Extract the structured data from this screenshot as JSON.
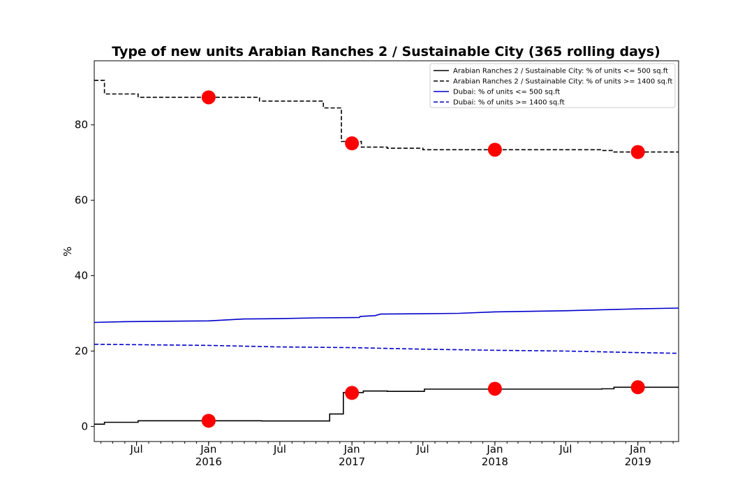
{
  "chart_data": {
    "type": "line",
    "title": "Type of new units Arabian Ranches 2 / Sustainable City (365 rolling days)",
    "xlabel": "",
    "ylabel": "%",
    "xlim": [
      "2015-03-15",
      "2019-04-15"
    ],
    "ylim": [
      -4,
      97
    ],
    "yticks": [
      0,
      20,
      40,
      60,
      80
    ],
    "xticks_major": [
      {
        "date": "2015-07-01",
        "label": "Jul",
        "sub": ""
      },
      {
        "date": "2016-01-01",
        "label": "Jan",
        "sub": "2016"
      },
      {
        "date": "2016-07-01",
        "label": "Jul",
        "sub": ""
      },
      {
        "date": "2017-01-01",
        "label": "Jan",
        "sub": "2017"
      },
      {
        "date": "2017-07-01",
        "label": "Jul",
        "sub": ""
      },
      {
        "date": "2018-01-01",
        "label": "Jan",
        "sub": "2018"
      },
      {
        "date": "2018-07-01",
        "label": "Jul",
        "sub": ""
      },
      {
        "date": "2019-01-01",
        "label": "Jan",
        "sub": "2019"
      }
    ],
    "legend_position": "top-right",
    "grid": false,
    "series": [
      {
        "name": "Arabian Ranches 2 / Sustainable City: % of units <= 500 sq.ft",
        "color": "#000000",
        "style": "solid",
        "step": true,
        "points": [
          [
            "2015-03-15",
            0.6
          ],
          [
            "2015-04-10",
            1.1
          ],
          [
            "2015-07-05",
            1.5
          ],
          [
            "2016-05-15",
            1.45
          ],
          [
            "2016-11-05",
            3.3
          ],
          [
            "2016-12-10",
            9.0
          ],
          [
            "2017-01-30",
            9.4
          ],
          [
            "2017-04-01",
            9.3
          ],
          [
            "2017-07-05",
            9.9
          ],
          [
            "2018-10-01",
            10.0
          ],
          [
            "2018-11-01",
            10.4
          ],
          [
            "2019-04-15",
            10.4
          ]
        ]
      },
      {
        "name": "Arabian Ranches 2 / Sustainable City: % of units >= 1400 sq.ft",
        "color": "#000000",
        "style": "dashed",
        "step": true,
        "points": [
          [
            "2015-03-15",
            91.8
          ],
          [
            "2015-04-10",
            88.2
          ],
          [
            "2015-07-05",
            87.3
          ],
          [
            "2016-05-10",
            86.3
          ],
          [
            "2016-10-20",
            84.5
          ],
          [
            "2016-12-05",
            75.6
          ],
          [
            "2017-01-25",
            74.1
          ],
          [
            "2017-04-01",
            73.8
          ],
          [
            "2017-07-01",
            73.4
          ],
          [
            "2018-10-01",
            73.2
          ],
          [
            "2018-11-01",
            72.8
          ],
          [
            "2019-04-15",
            72.8
          ]
        ]
      },
      {
        "name": "Dubai: % of units <= 500 sq.ft",
        "color": "#0000cc",
        "style": "solid",
        "step": false,
        "points": [
          [
            "2015-03-15",
            27.6
          ],
          [
            "2015-06-01",
            27.8
          ],
          [
            "2016-01-01",
            28.0
          ],
          [
            "2016-04-01",
            28.5
          ],
          [
            "2016-07-01",
            28.6
          ],
          [
            "2016-10-01",
            28.8
          ],
          [
            "2017-01-20",
            28.9
          ],
          [
            "2017-01-22",
            29.2
          ],
          [
            "2017-03-01",
            29.4
          ],
          [
            "2017-03-15",
            29.8
          ],
          [
            "2017-07-01",
            29.9
          ],
          [
            "2017-10-01",
            30.0
          ],
          [
            "2018-01-01",
            30.4
          ],
          [
            "2018-07-01",
            30.7
          ],
          [
            "2019-01-01",
            31.2
          ],
          [
            "2019-04-15",
            31.4
          ]
        ]
      },
      {
        "name": "Dubai: % of units >= 1400 sq.ft",
        "color": "#0000cc",
        "style": "dashed",
        "step": false,
        "points": [
          [
            "2015-03-15",
            21.8
          ],
          [
            "2016-01-01",
            21.5
          ],
          [
            "2016-07-01",
            21.1
          ],
          [
            "2017-01-01",
            20.9
          ],
          [
            "2017-07-01",
            20.5
          ],
          [
            "2018-01-01",
            20.2
          ],
          [
            "2018-07-01",
            20.0
          ],
          [
            "2019-01-01",
            19.6
          ],
          [
            "2019-04-15",
            19.4
          ]
        ]
      }
    ],
    "markers": {
      "color": "#ff0000",
      "points": [
        [
          "2016-01-01",
          87.3
        ],
        [
          "2017-01-01",
          75.1
        ],
        [
          "2018-01-01",
          73.4
        ],
        [
          "2019-01-01",
          72.8
        ],
        [
          "2016-01-01",
          1.5
        ],
        [
          "2017-01-01",
          8.9
        ],
        [
          "2018-01-01",
          10.0
        ],
        [
          "2019-01-01",
          10.4
        ]
      ]
    }
  }
}
